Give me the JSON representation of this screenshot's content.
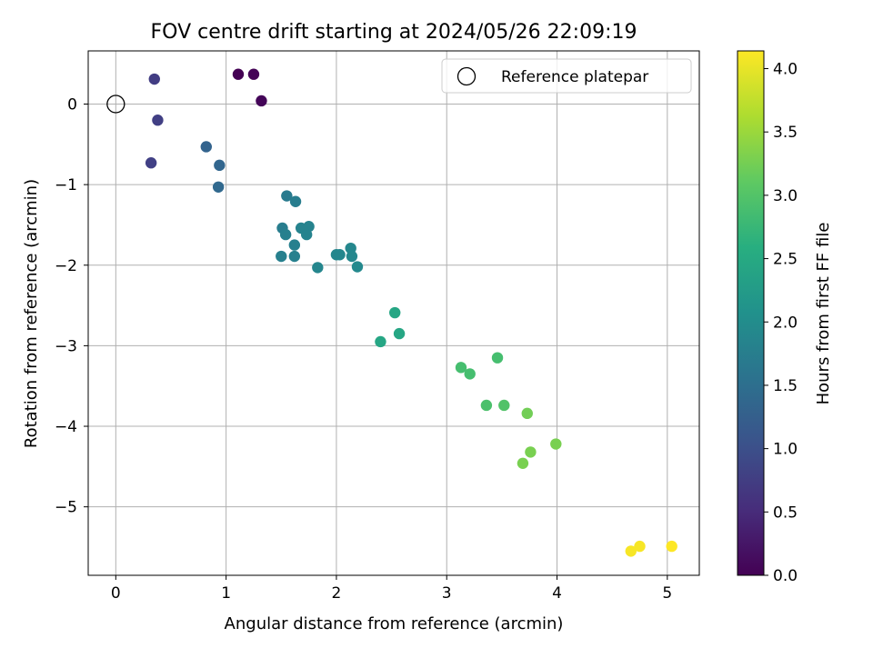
{
  "chart_data": {
    "type": "scatter",
    "title": "FOV centre drift starting at 2024/05/26 22:09:19",
    "xlabel": "Angular distance from reference (arcmin)",
    "ylabel": "Rotation from reference (arcmin)",
    "xlim": [
      -0.25,
      5.29
    ],
    "ylim": [
      -5.85,
      0.66
    ],
    "xticks": [
      0,
      1,
      2,
      3,
      4,
      5
    ],
    "xtick_labels": [
      "0",
      "1",
      "2",
      "3",
      "4",
      "5"
    ],
    "yticks": [
      0,
      -1,
      -2,
      -3,
      -4,
      -5
    ],
    "ytick_labels": [
      "0",
      "−1",
      "−2",
      "−3",
      "−4",
      "−5"
    ],
    "grid": true,
    "legend": {
      "position": "top-right",
      "entries": [
        "Reference platepar"
      ]
    },
    "reference_point": {
      "x": 0,
      "y": 0
    },
    "colorbar": {
      "label": "Hours from first FF file",
      "colormap": "viridis",
      "range": [
        0,
        4.14
      ],
      "ticks": [
        0,
        0.5,
        1,
        1.5,
        2,
        2.5,
        3,
        3.5,
        4
      ],
      "tick_labels": [
        "0.0",
        "0.5",
        "1.0",
        "1.5",
        "2.0",
        "2.5",
        "3.0",
        "3.5",
        "4.0"
      ]
    },
    "points": [
      {
        "x": 1.11,
        "y": 0.37,
        "c": 0.0
      },
      {
        "x": 1.25,
        "y": 0.37,
        "c": 0.02
      },
      {
        "x": 1.32,
        "y": 0.04,
        "c": 0.05
      },
      {
        "x": 0.35,
        "y": 0.31,
        "c": 0.75
      },
      {
        "x": 0.38,
        "y": -0.2,
        "c": 0.78
      },
      {
        "x": 0.32,
        "y": -0.73,
        "c": 0.8
      },
      {
        "x": 0.82,
        "y": -0.53,
        "c": 1.3
      },
      {
        "x": 0.94,
        "y": -0.76,
        "c": 1.35
      },
      {
        "x": 0.93,
        "y": -1.03,
        "c": 1.4
      },
      {
        "x": 1.55,
        "y": -1.14,
        "c": 1.7
      },
      {
        "x": 1.63,
        "y": -1.21,
        "c": 1.75
      },
      {
        "x": 1.51,
        "y": -1.54,
        "c": 1.75
      },
      {
        "x": 1.54,
        "y": -1.62,
        "c": 1.8
      },
      {
        "x": 1.68,
        "y": -1.54,
        "c": 1.85
      },
      {
        "x": 1.75,
        "y": -1.52,
        "c": 1.85
      },
      {
        "x": 1.73,
        "y": -1.62,
        "c": 1.85
      },
      {
        "x": 1.62,
        "y": -1.75,
        "c": 1.8
      },
      {
        "x": 1.5,
        "y": -1.89,
        "c": 1.8
      },
      {
        "x": 1.62,
        "y": -1.89,
        "c": 1.8
      },
      {
        "x": 1.83,
        "y": -2.03,
        "c": 1.9
      },
      {
        "x": 2.0,
        "y": -1.87,
        "c": 1.9
      },
      {
        "x": 2.03,
        "y": -1.87,
        "c": 1.9
      },
      {
        "x": 2.13,
        "y": -1.79,
        "c": 1.92
      },
      {
        "x": 2.14,
        "y": -1.89,
        "c": 1.92
      },
      {
        "x": 2.19,
        "y": -2.02,
        "c": 1.95
      },
      {
        "x": 2.53,
        "y": -2.59,
        "c": 2.45
      },
      {
        "x": 2.57,
        "y": -2.85,
        "c": 2.45
      },
      {
        "x": 2.4,
        "y": -2.95,
        "c": 2.45
      },
      {
        "x": 3.13,
        "y": -3.27,
        "c": 2.9
      },
      {
        "x": 3.21,
        "y": -3.35,
        "c": 2.9
      },
      {
        "x": 3.46,
        "y": -3.15,
        "c": 2.9
      },
      {
        "x": 3.36,
        "y": -3.74,
        "c": 2.95
      },
      {
        "x": 3.52,
        "y": -3.74,
        "c": 3.0
      },
      {
        "x": 3.73,
        "y": -3.84,
        "c": 3.25
      },
      {
        "x": 3.99,
        "y": -4.22,
        "c": 3.3
      },
      {
        "x": 3.76,
        "y": -4.32,
        "c": 3.3
      },
      {
        "x": 3.69,
        "y": -4.46,
        "c": 3.3
      },
      {
        "x": 4.67,
        "y": -5.55,
        "c": 4.1
      },
      {
        "x": 4.75,
        "y": -5.49,
        "c": 4.1
      },
      {
        "x": 5.04,
        "y": -5.49,
        "c": 4.14
      }
    ]
  }
}
